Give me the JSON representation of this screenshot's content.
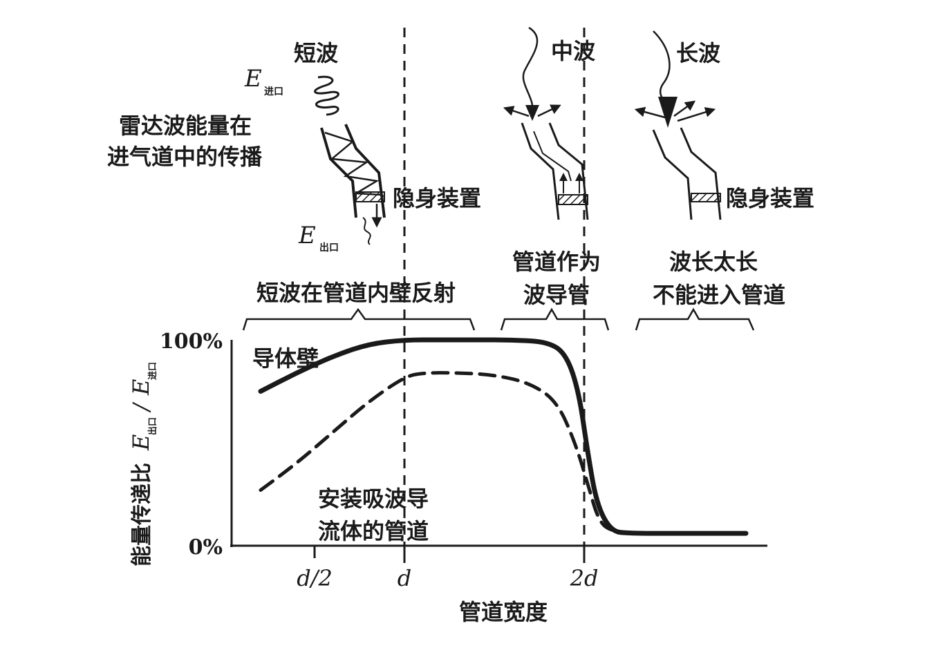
{
  "top_diagram": {
    "short_wave": {
      "title": "短波",
      "e_in": "E",
      "e_in_sub": "进口",
      "e_out": "E",
      "e_out_sub": "出口",
      "device_label": "隐身装置"
    },
    "medium_wave": {
      "title": "中波"
    },
    "long_wave": {
      "title": "长波",
      "device_label": "隐身装置"
    },
    "caption": [
      "雷达波能量在",
      "进气道中的传播"
    ]
  },
  "region_labels": {
    "short": [
      "短波在管道内壁反射"
    ],
    "medium": [
      "管道作为",
      "波导管"
    ],
    "long": [
      "波长太长",
      "不能进入管道"
    ]
  },
  "chart_data": {
    "type": "line",
    "ylabel_main": "能量传递比",
    "ylabel_ratio": {
      "num": "E",
      "num_sub": "出口",
      "den": "E",
      "den_sub": "进口"
    },
    "xlabel": "管道宽度",
    "x_ticks": [
      {
        "x": 0.5,
        "label": "d/2"
      },
      {
        "x": 1,
        "label": "d"
      },
      {
        "x": 2,
        "label": "2d"
      }
    ],
    "y_ticks": [
      {
        "y": 100,
        "label": "100%"
      },
      {
        "y": 0,
        "label": "0%"
      }
    ],
    "xlim": [
      0,
      2.95
    ],
    "ylim": [
      0,
      100
    ],
    "series": [
      {
        "name": "导体壁",
        "style": "solid",
        "points": [
          [
            0.2,
            75
          ],
          [
            0.4,
            84
          ],
          [
            0.6,
            92
          ],
          [
            0.8,
            98
          ],
          [
            1.0,
            100
          ],
          [
            1.2,
            100
          ],
          [
            1.4,
            100
          ],
          [
            1.6,
            100
          ],
          [
            1.8,
            99
          ],
          [
            1.9,
            93
          ],
          [
            1.97,
            75
          ],
          [
            2.02,
            45
          ],
          [
            2.07,
            20
          ],
          [
            2.15,
            7
          ],
          [
            2.25,
            6
          ],
          [
            2.5,
            6
          ],
          [
            2.9,
            6
          ]
        ]
      },
      {
        "name": "安装吸波导流体的管道",
        "style": "dashed",
        "points": [
          [
            0.2,
            27
          ],
          [
            0.4,
            40
          ],
          [
            0.6,
            55
          ],
          [
            0.8,
            70
          ],
          [
            1.0,
            82
          ],
          [
            1.1,
            84
          ],
          [
            1.3,
            84
          ],
          [
            1.5,
            83
          ],
          [
            1.7,
            79
          ],
          [
            1.85,
            70
          ],
          [
            1.95,
            50
          ],
          [
            2.02,
            30
          ],
          [
            2.08,
            12
          ],
          [
            2.15,
            7
          ],
          [
            2.3,
            6
          ]
        ]
      }
    ],
    "series_labels": [
      [
        "导体壁"
      ],
      [
        "安装吸波导",
        "流体的管道"
      ]
    ],
    "vlines": [
      1,
      2
    ]
  },
  "colors": {
    "ink": "#1a1a1a",
    "background": "#ffffff",
    "hatch": "#1a1a1a"
  }
}
